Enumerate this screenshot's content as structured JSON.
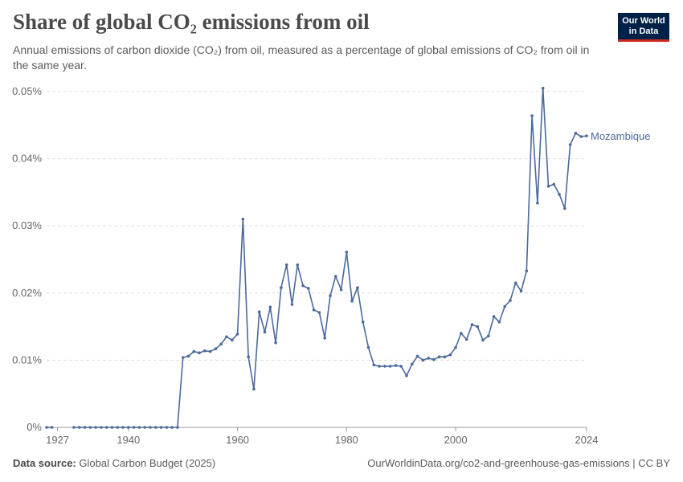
{
  "header": {
    "title": "Share of global CO₂ emissions from oil",
    "subtitle": "Annual emissions of carbon dioxide (CO₂) from oil, measured as a percentage of global emissions of CO₂ from oil in the same year.",
    "logo_line1": "Our World",
    "logo_line2": "in Data"
  },
  "footer": {
    "source_label": "Data source:",
    "source_value": "Global Carbon Budget (2025)",
    "url": "OurWorldinData.org/co2-and-greenhouse-gas-emissions | CC BY"
  },
  "colors": {
    "series": "#4c6a9c",
    "grid": "#dddddd",
    "axis": "#999999"
  },
  "chart_data": {
    "type": "line",
    "title": "Share of global CO₂ emissions from oil",
    "xlabel": "",
    "ylabel": "",
    "xlim": [
      1925,
      2024
    ],
    "ylim": [
      0,
      0.05
    ],
    "grid": true,
    "y_ticks": [
      {
        "value": 0,
        "label": "0%"
      },
      {
        "value": 0.01,
        "label": "0.01%"
      },
      {
        "value": 0.02,
        "label": "0.02%"
      },
      {
        "value": 0.03,
        "label": "0.03%"
      },
      {
        "value": 0.04,
        "label": "0.04%"
      },
      {
        "value": 0.05,
        "label": "0.05%"
      }
    ],
    "x_ticks": [
      {
        "value": 1927,
        "label": "1927"
      },
      {
        "value": 1940,
        "label": "1940"
      },
      {
        "value": 1960,
        "label": "1960"
      },
      {
        "value": 1980,
        "label": "1980"
      },
      {
        "value": 2000,
        "label": "2000"
      },
      {
        "value": 2024,
        "label": "2024"
      }
    ],
    "series": [
      {
        "name": "Mozambique",
        "points": [
          [
            1925,
            0
          ],
          [
            1926,
            0
          ],
          [
            1930,
            0
          ],
          [
            1931,
            0
          ],
          [
            1932,
            0
          ],
          [
            1933,
            0
          ],
          [
            1934,
            0
          ],
          [
            1935,
            0
          ],
          [
            1936,
            0
          ],
          [
            1937,
            0
          ],
          [
            1938,
            0
          ],
          [
            1939,
            0
          ],
          [
            1940,
            0
          ],
          [
            1941,
            0
          ],
          [
            1942,
            0
          ],
          [
            1943,
            0
          ],
          [
            1944,
            0
          ],
          [
            1945,
            0
          ],
          [
            1946,
            0
          ],
          [
            1947,
            0
          ],
          [
            1948,
            0
          ],
          [
            1949,
            0
          ],
          [
            1950,
            0.0104
          ],
          [
            1951,
            0.0106
          ],
          [
            1952,
            0.0113
          ],
          [
            1953,
            0.0111
          ],
          [
            1954,
            0.0114
          ],
          [
            1955,
            0.0113
          ],
          [
            1956,
            0.0117
          ],
          [
            1957,
            0.0124
          ],
          [
            1958,
            0.0135
          ],
          [
            1959,
            0.013
          ],
          [
            1960,
            0.0139
          ],
          [
            1961,
            0.031
          ],
          [
            1962,
            0.0105
          ],
          [
            1963,
            0.0057
          ],
          [
            1964,
            0.0172
          ],
          [
            1965,
            0.0142
          ],
          [
            1966,
            0.0179
          ],
          [
            1967,
            0.0126
          ],
          [
            1968,
            0.0208
          ],
          [
            1969,
            0.0242
          ],
          [
            1970,
            0.0183
          ],
          [
            1971,
            0.0242
          ],
          [
            1972,
            0.0211
          ],
          [
            1973,
            0.0207
          ],
          [
            1974,
            0.0175
          ],
          [
            1975,
            0.0171
          ],
          [
            1976,
            0.0133
          ],
          [
            1977,
            0.0196
          ],
          [
            1978,
            0.0225
          ],
          [
            1979,
            0.0205
          ],
          [
            1980,
            0.0261
          ],
          [
            1981,
            0.0188
          ],
          [
            1982,
            0.0208
          ],
          [
            1983,
            0.0157
          ],
          [
            1984,
            0.0119
          ],
          [
            1985,
            0.0093
          ],
          [
            1986,
            0.0091
          ],
          [
            1987,
            0.0091
          ],
          [
            1988,
            0.0091
          ],
          [
            1989,
            0.0092
          ],
          [
            1990,
            0.0091
          ],
          [
            1991,
            0.0077
          ],
          [
            1992,
            0.0094
          ],
          [
            1993,
            0.0106
          ],
          [
            1994,
            0.01
          ],
          [
            1995,
            0.0103
          ],
          [
            1996,
            0.0101
          ],
          [
            1997,
            0.0105
          ],
          [
            1998,
            0.0105
          ],
          [
            1999,
            0.0108
          ],
          [
            2000,
            0.0119
          ],
          [
            2001,
            0.014
          ],
          [
            2002,
            0.0131
          ],
          [
            2003,
            0.0153
          ],
          [
            2004,
            0.015
          ],
          [
            2005,
            0.013
          ],
          [
            2006,
            0.0136
          ],
          [
            2007,
            0.0165
          ],
          [
            2008,
            0.0157
          ],
          [
            2009,
            0.018
          ],
          [
            2010,
            0.0189
          ],
          [
            2011,
            0.0215
          ],
          [
            2012,
            0.0203
          ],
          [
            2013,
            0.0233
          ],
          [
            2014,
            0.0464
          ],
          [
            2015,
            0.0334
          ],
          [
            2016,
            0.0505
          ],
          [
            2017,
            0.0359
          ],
          [
            2018,
            0.0362
          ],
          [
            2019,
            0.0347
          ],
          [
            2020,
            0.0326
          ],
          [
            2021,
            0.0421
          ],
          [
            2022,
            0.0438
          ],
          [
            2023,
            0.0433
          ],
          [
            2024,
            0.0434
          ]
        ]
      }
    ]
  }
}
